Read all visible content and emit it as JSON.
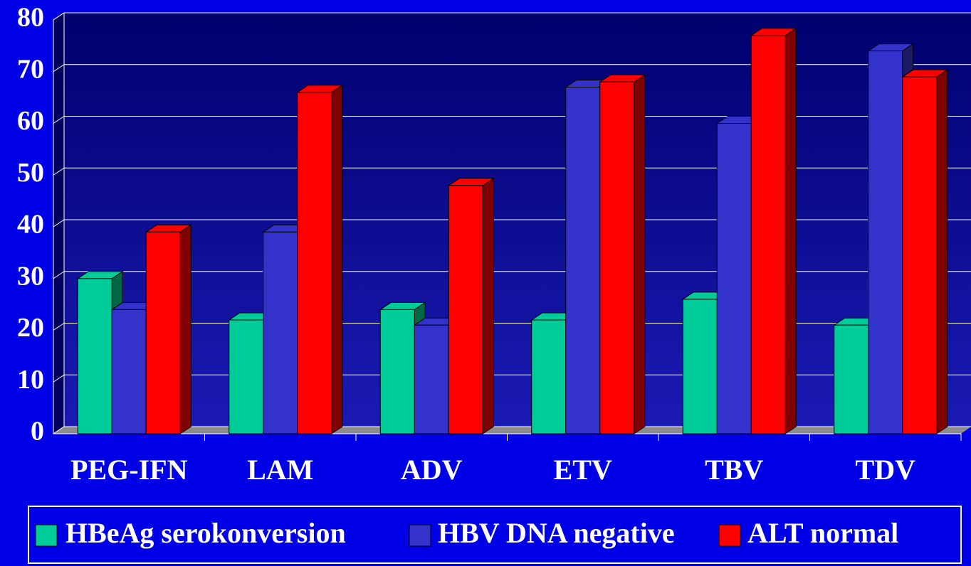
{
  "chart_data": {
    "type": "bar3d",
    "categories": [
      "PEG-IFN",
      "LAM",
      "ADV",
      "ETV",
      "TBV",
      "TDV"
    ],
    "series": [
      {
        "name": "HBeAg serokonversion",
        "color": "#00cc99",
        "side": "#006644",
        "values": [
          30,
          22,
          24,
          22,
          26,
          21
        ]
      },
      {
        "name": "HBV DNA negative",
        "color": "#3333cc",
        "side": "#1a1a66",
        "values": [
          24,
          39,
          21,
          67,
          60,
          74
        ]
      },
      {
        "name": "ALT normal",
        "color": "#ff0000",
        "side": "#800000",
        "values": [
          39,
          66,
          48,
          68,
          77,
          69
        ]
      }
    ],
    "ylim": [
      0,
      80
    ],
    "yticks": [
      0,
      10,
      20,
      30,
      40,
      50,
      60,
      70,
      80
    ],
    "grid": true,
    "legend": "bottom"
  }
}
